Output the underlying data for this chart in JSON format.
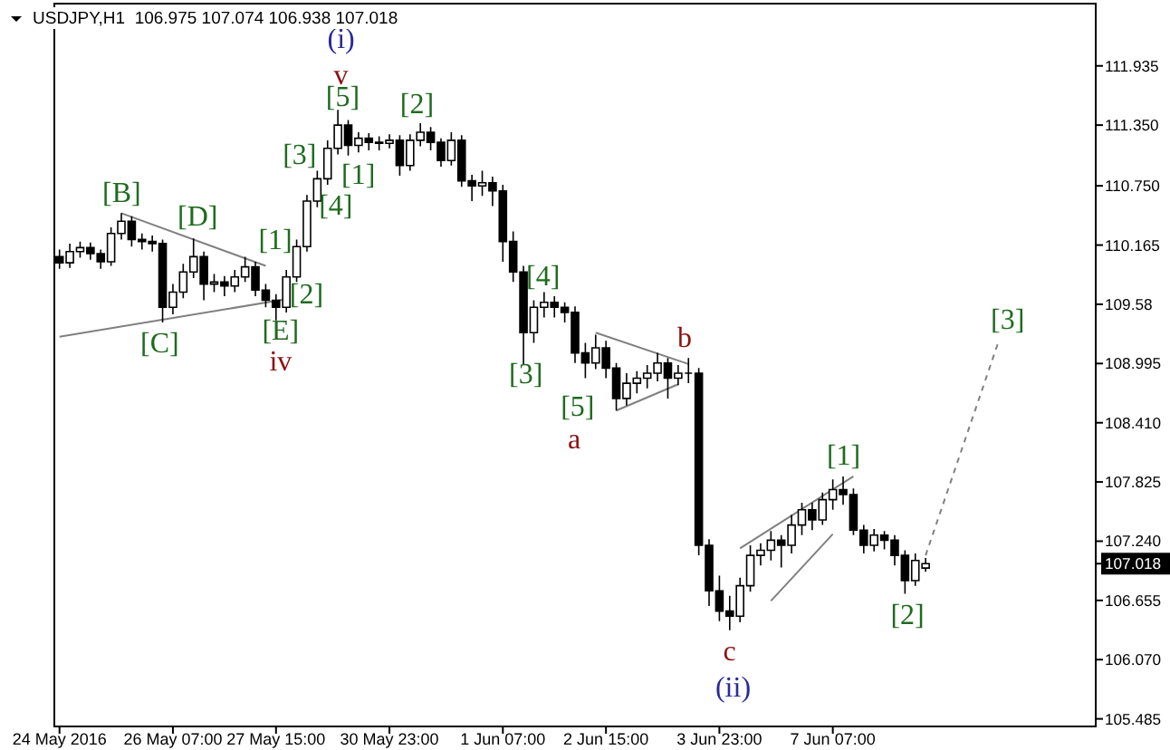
{
  "chart_data": {
    "type": "candlestick",
    "title": "USDJPY,H1  106.975 107.074 106.938 107.018",
    "categories": [
      "24 May 2016",
      null,
      null,
      null,
      null,
      null,
      null,
      null,
      null,
      null,
      null,
      "26 May 07:00",
      null,
      null,
      null,
      null,
      null,
      null,
      null,
      null,
      null,
      "27 May 15:00",
      null,
      null,
      null,
      null,
      null,
      null,
      null,
      null,
      null,
      null,
      "30 May 23:00",
      null,
      null,
      null,
      null,
      null,
      null,
      null,
      null,
      null,
      null,
      "1 Jun 07:00",
      null,
      null,
      null,
      null,
      null,
      null,
      null,
      null,
      null,
      "2 Jun 15:00",
      null,
      null,
      null,
      null,
      null,
      null,
      null,
      null,
      null,
      null,
      "3 Jun 23:00",
      null,
      null,
      null,
      null,
      null,
      null,
      null,
      null,
      null,
      null,
      "7 Jun 07:00",
      null,
      null,
      null,
      null,
      null,
      null,
      null,
      null,
      null,
      null,
      null,
      null,
      null,
      null,
      null,
      null,
      null,
      null,
      null,
      null,
      null,
      null,
      null,
      null,
      null
    ],
    "ohlc": [
      [
        110.05,
        110.12,
        109.93,
        109.99
      ],
      [
        109.99,
        110.18,
        109.94,
        110.1
      ],
      [
        110.1,
        110.2,
        110.04,
        110.14
      ],
      [
        110.14,
        110.19,
        110.02,
        110.08
      ],
      [
        110.08,
        110.12,
        109.93,
        110.0
      ],
      [
        110.0,
        110.34,
        109.96,
        110.28
      ],
      [
        110.28,
        110.48,
        110.22,
        110.4
      ],
      [
        110.4,
        110.45,
        110.15,
        110.22
      ],
      [
        110.22,
        110.28,
        110.12,
        110.2
      ],
      [
        110.2,
        110.26,
        110.1,
        110.18
      ],
      [
        110.18,
        110.22,
        109.4,
        109.55
      ],
      [
        109.55,
        109.78,
        109.48,
        109.7
      ],
      [
        109.7,
        109.98,
        109.64,
        109.9
      ],
      [
        109.9,
        110.23,
        109.84,
        110.05
      ],
      [
        110.05,
        110.1,
        109.62,
        109.78
      ],
      [
        109.78,
        109.88,
        109.7,
        109.8
      ],
      [
        109.8,
        109.86,
        109.66,
        109.76
      ],
      [
        109.76,
        109.92,
        109.7,
        109.85
      ],
      [
        109.85,
        110.05,
        109.8,
        109.95
      ],
      [
        109.95,
        110.0,
        109.66,
        109.72
      ],
      [
        109.72,
        109.78,
        109.55,
        109.62
      ],
      [
        109.62,
        109.68,
        109.42,
        109.55
      ],
      [
        109.55,
        109.92,
        109.5,
        109.85
      ],
      [
        109.85,
        110.22,
        109.8,
        110.15
      ],
      [
        110.15,
        110.66,
        110.1,
        110.6
      ],
      [
        110.6,
        110.9,
        110.54,
        110.82
      ],
      [
        110.82,
        111.2,
        110.76,
        111.12
      ],
      [
        111.12,
        111.5,
        111.06,
        111.35
      ],
      [
        111.35,
        111.4,
        111.05,
        111.15
      ],
      [
        111.15,
        111.28,
        111.08,
        111.22
      ],
      [
        111.22,
        111.27,
        111.1,
        111.18
      ],
      [
        111.18,
        111.24,
        111.1,
        111.17
      ],
      [
        111.17,
        111.26,
        111.12,
        111.2
      ],
      [
        111.2,
        111.25,
        110.85,
        110.95
      ],
      [
        110.95,
        111.26,
        110.9,
        111.2
      ],
      [
        111.2,
        111.37,
        111.14,
        111.28
      ],
      [
        111.28,
        111.33,
        111.1,
        111.18
      ],
      [
        111.18,
        111.22,
        110.94,
        111.0
      ],
      [
        111.0,
        111.28,
        110.95,
        111.2
      ],
      [
        111.2,
        111.25,
        110.74,
        110.8
      ],
      [
        110.8,
        110.86,
        110.6,
        110.75
      ],
      [
        110.75,
        110.9,
        110.65,
        110.78
      ],
      [
        110.78,
        110.84,
        110.55,
        110.7
      ],
      [
        110.7,
        110.76,
        110.0,
        110.2
      ],
      [
        110.2,
        110.3,
        109.8,
        109.9
      ],
      [
        109.9,
        109.96,
        108.99,
        109.3
      ],
      [
        109.3,
        109.62,
        109.2,
        109.55
      ],
      [
        109.55,
        109.7,
        109.45,
        109.6
      ],
      [
        109.6,
        109.66,
        109.45,
        109.55
      ],
      [
        109.55,
        109.6,
        109.4,
        109.5
      ],
      [
        109.5,
        109.56,
        109.0,
        109.1
      ],
      [
        109.1,
        109.2,
        108.85,
        109.0
      ],
      [
        109.0,
        109.28,
        108.94,
        109.15
      ],
      [
        109.15,
        109.22,
        108.85,
        108.95
      ],
      [
        108.95,
        109.0,
        108.53,
        108.65
      ],
      [
        108.65,
        108.9,
        108.58,
        108.8
      ],
      [
        108.8,
        108.92,
        108.7,
        108.85
      ],
      [
        108.85,
        108.98,
        108.75,
        108.9
      ],
      [
        108.9,
        109.1,
        108.82,
        109.0
      ],
      [
        109.0,
        109.05,
        108.65,
        108.85
      ],
      [
        108.85,
        108.98,
        108.78,
        108.9
      ],
      [
        108.9,
        109.05,
        108.8,
        108.9
      ],
      [
        108.9,
        108.95,
        107.1,
        107.2
      ],
      [
        107.2,
        107.26,
        106.6,
        106.75
      ],
      [
        106.75,
        106.9,
        106.45,
        106.55
      ],
      [
        106.55,
        106.7,
        106.36,
        106.5
      ],
      [
        106.5,
        106.88,
        106.44,
        106.8
      ],
      [
        106.8,
        107.2,
        106.74,
        107.1
      ],
      [
        107.1,
        107.22,
        107.0,
        107.15
      ],
      [
        107.15,
        107.34,
        107.05,
        107.25
      ],
      [
        107.25,
        107.3,
        106.98,
        107.2
      ],
      [
        107.2,
        107.5,
        107.12,
        107.4
      ],
      [
        107.4,
        107.62,
        107.3,
        107.55
      ],
      [
        107.55,
        107.62,
        107.35,
        107.45
      ],
      [
        107.45,
        107.72,
        107.4,
        107.65
      ],
      [
        107.65,
        107.85,
        107.55,
        107.75
      ],
      [
        107.75,
        107.88,
        107.6,
        107.7
      ],
      [
        107.7,
        107.76,
        107.3,
        107.35
      ],
      [
        107.35,
        107.4,
        107.12,
        107.2
      ],
      [
        107.2,
        107.36,
        107.14,
        107.3
      ],
      [
        107.3,
        107.34,
        107.16,
        107.25
      ],
      [
        107.25,
        107.3,
        107.0,
        107.1
      ],
      [
        107.1,
        107.15,
        106.72,
        106.85
      ],
      [
        106.85,
        107.12,
        106.8,
        107.05
      ],
      [
        106.975,
        107.074,
        106.938,
        107.018
      ],
      null,
      null,
      null,
      null,
      null,
      null,
      null,
      null,
      null,
      null,
      null,
      null,
      null,
      null,
      null,
      null
    ],
    "series": [
      {
        "type": "line",
        "color": "#808080",
        "line_style": "solid",
        "values": [
          null,
          null,
          null,
          null,
          null,
          null,
          110.48,
          null,
          null,
          null,
          null,
          null,
          null,
          null,
          null,
          null,
          null,
          null,
          null,
          null,
          109.96,
          null,
          null,
          null,
          null,
          null,
          null,
          null,
          null,
          null,
          null,
          null,
          null,
          null,
          null,
          null,
          null,
          null,
          null,
          null,
          null,
          null,
          null,
          null,
          null,
          null,
          null,
          null,
          null,
          null,
          null,
          null,
          null,
          null,
          null,
          null,
          null,
          null,
          null,
          null,
          null,
          null,
          null,
          null,
          null,
          null,
          null,
          null,
          null,
          null,
          null,
          null,
          null,
          null,
          null,
          null,
          null,
          null,
          null,
          null,
          null,
          null,
          null,
          null,
          null,
          null,
          null,
          null,
          null,
          null,
          null,
          null,
          null,
          null,
          null,
          null,
          null,
          null,
          null,
          null,
          null
        ]
      },
      {
        "type": "line",
        "color": "#808080",
        "line_style": "solid",
        "values": [
          109.26,
          null,
          null,
          null,
          null,
          null,
          null,
          null,
          null,
          null,
          null,
          null,
          null,
          null,
          null,
          null,
          null,
          null,
          null,
          null,
          null,
          null,
          109.63,
          null,
          null,
          null,
          null,
          null,
          null,
          null,
          null,
          null,
          null,
          null,
          null,
          null,
          null,
          null,
          null,
          null,
          null,
          null,
          null,
          null,
          null,
          null,
          null,
          null,
          null,
          null,
          null,
          null,
          null,
          null,
          null,
          null,
          null,
          null,
          null,
          null,
          null,
          null,
          null,
          null,
          null,
          null,
          null,
          null,
          null,
          null,
          null,
          null,
          null,
          null,
          null,
          null,
          null,
          null,
          null,
          null,
          null,
          null,
          null,
          null,
          null,
          null,
          null,
          null,
          null,
          null,
          null,
          null,
          null,
          null,
          null,
          null,
          null,
          null,
          null,
          null,
          null
        ]
      },
      {
        "type": "line",
        "color": "#808080",
        "line_style": "solid",
        "values": [
          null,
          null,
          null,
          null,
          null,
          null,
          null,
          null,
          null,
          null,
          null,
          null,
          null,
          null,
          null,
          null,
          null,
          null,
          null,
          null,
          null,
          null,
          null,
          null,
          null,
          null,
          null,
          null,
          null,
          null,
          null,
          null,
          null,
          null,
          null,
          null,
          null,
          null,
          null,
          null,
          null,
          null,
          null,
          null,
          null,
          null,
          null,
          null,
          null,
          null,
          null,
          null,
          109.3,
          null,
          null,
          null,
          null,
          null,
          null,
          null,
          null,
          108.99,
          null,
          null,
          null,
          null,
          null,
          null,
          null,
          null,
          null,
          null,
          null,
          null,
          null,
          null,
          null,
          null,
          null,
          null,
          null,
          null,
          null,
          null,
          null,
          null,
          null,
          null,
          null,
          null,
          null,
          null,
          null,
          null,
          null,
          null,
          null,
          null,
          null,
          null,
          null
        ]
      },
      {
        "type": "line",
        "color": "#808080",
        "line_style": "solid",
        "values": [
          null,
          null,
          null,
          null,
          null,
          null,
          null,
          null,
          null,
          null,
          null,
          null,
          null,
          null,
          null,
          null,
          null,
          null,
          null,
          null,
          null,
          null,
          null,
          null,
          null,
          null,
          null,
          null,
          null,
          null,
          null,
          null,
          null,
          null,
          null,
          null,
          null,
          null,
          null,
          null,
          null,
          null,
          null,
          null,
          null,
          null,
          null,
          null,
          null,
          null,
          null,
          null,
          null,
          null,
          108.53,
          null,
          null,
          null,
          null,
          null,
          108.79,
          null,
          null,
          null,
          null,
          null,
          null,
          null,
          null,
          null,
          null,
          null,
          null,
          null,
          null,
          null,
          null,
          null,
          null,
          null,
          null,
          null,
          null,
          null,
          null,
          null,
          null,
          null,
          null,
          null,
          null,
          null,
          null,
          null,
          null,
          null,
          null,
          null,
          null,
          null,
          null
        ]
      },
      {
        "type": "line",
        "color": "#808080",
        "line_style": "solid",
        "values": [
          null,
          null,
          null,
          null,
          null,
          null,
          null,
          null,
          null,
          null,
          null,
          null,
          null,
          null,
          null,
          null,
          null,
          null,
          null,
          null,
          null,
          null,
          null,
          null,
          null,
          null,
          null,
          null,
          null,
          null,
          null,
          null,
          null,
          null,
          null,
          null,
          null,
          null,
          null,
          null,
          null,
          null,
          null,
          null,
          null,
          null,
          null,
          null,
          null,
          null,
          null,
          null,
          null,
          null,
          null,
          null,
          null,
          null,
          null,
          null,
          null,
          null,
          null,
          null,
          null,
          null,
          107.17,
          null,
          null,
          null,
          null,
          null,
          null,
          null,
          null,
          null,
          null,
          107.88,
          null,
          null,
          null,
          null,
          null,
          null,
          null,
          null,
          null,
          null,
          null,
          null,
          null,
          null,
          null,
          null,
          null,
          null,
          null,
          null,
          null,
          null,
          null
        ]
      },
      {
        "type": "line",
        "color": "#808080",
        "line_style": "solid",
        "values": [
          null,
          null,
          null,
          null,
          null,
          null,
          null,
          null,
          null,
          null,
          null,
          null,
          null,
          null,
          null,
          null,
          null,
          null,
          null,
          null,
          null,
          null,
          null,
          null,
          null,
          null,
          null,
          null,
          null,
          null,
          null,
          null,
          null,
          null,
          null,
          null,
          null,
          null,
          null,
          null,
          null,
          null,
          null,
          null,
          null,
          null,
          null,
          null,
          null,
          null,
          null,
          null,
          null,
          null,
          null,
          null,
          null,
          null,
          null,
          null,
          null,
          null,
          null,
          null,
          null,
          null,
          null,
          null,
          null,
          106.65,
          null,
          null,
          null,
          null,
          null,
          107.31,
          null,
          null,
          null,
          null,
          null,
          null,
          null,
          null,
          null,
          null,
          null,
          null,
          null,
          null,
          null,
          null,
          null,
          null,
          null,
          null,
          null,
          null,
          null,
          null,
          null
        ]
      },
      {
        "type": "line",
        "color": "#808080",
        "line_style": "dashed",
        "values": [
          null,
          null,
          null,
          null,
          null,
          null,
          null,
          null,
          null,
          null,
          null,
          null,
          null,
          null,
          null,
          null,
          null,
          null,
          null,
          null,
          null,
          null,
          null,
          null,
          null,
          null,
          null,
          null,
          null,
          null,
          null,
          null,
          null,
          null,
          null,
          null,
          null,
          null,
          null,
          null,
          null,
          null,
          null,
          null,
          null,
          null,
          null,
          null,
          null,
          null,
          null,
          null,
          null,
          null,
          null,
          null,
          null,
          null,
          null,
          null,
          null,
          null,
          null,
          null,
          null,
          null,
          null,
          null,
          null,
          null,
          null,
          null,
          null,
          null,
          null,
          null,
          null,
          null,
          null,
          null,
          null,
          null,
          null,
          null,
          107.1,
          null,
          null,
          null,
          null,
          null,
          null,
          109.19,
          null,
          null,
          null,
          null,
          null,
          null,
          null,
          null,
          null
        ]
      }
    ],
    "ylim": [
      105.41,
      112.55
    ],
    "yticks": [
      105.485,
      {
        "value": 106.07,
        "label": "106.070"
      },
      106.655,
      {
        "value": 107.018,
        "label": "107.018"
      },
      {
        "value": 107.24,
        "label": "107.240"
      },
      107.825,
      {
        "value": 108.41,
        "label": "108.410"
      },
      108.995,
      109.58,
      110.165,
      {
        "value": 110.75,
        "label": "110.750"
      },
      {
        "value": 111.35,
        "label": "111.350"
      },
      111.935
    ],
    "annotations": [
      "(i)",
      "v",
      "[5]",
      "[2]",
      "[3]",
      "[1]",
      "[4]",
      "[B]",
      "[D]",
      "[1]",
      "[2]",
      "[E]",
      "[C]",
      "iv",
      "[4]",
      "[3]",
      "[5]",
      "a",
      "b",
      "[1]",
      "[3]",
      "[2]",
      "c",
      "(ii)"
    ]
  }
}
